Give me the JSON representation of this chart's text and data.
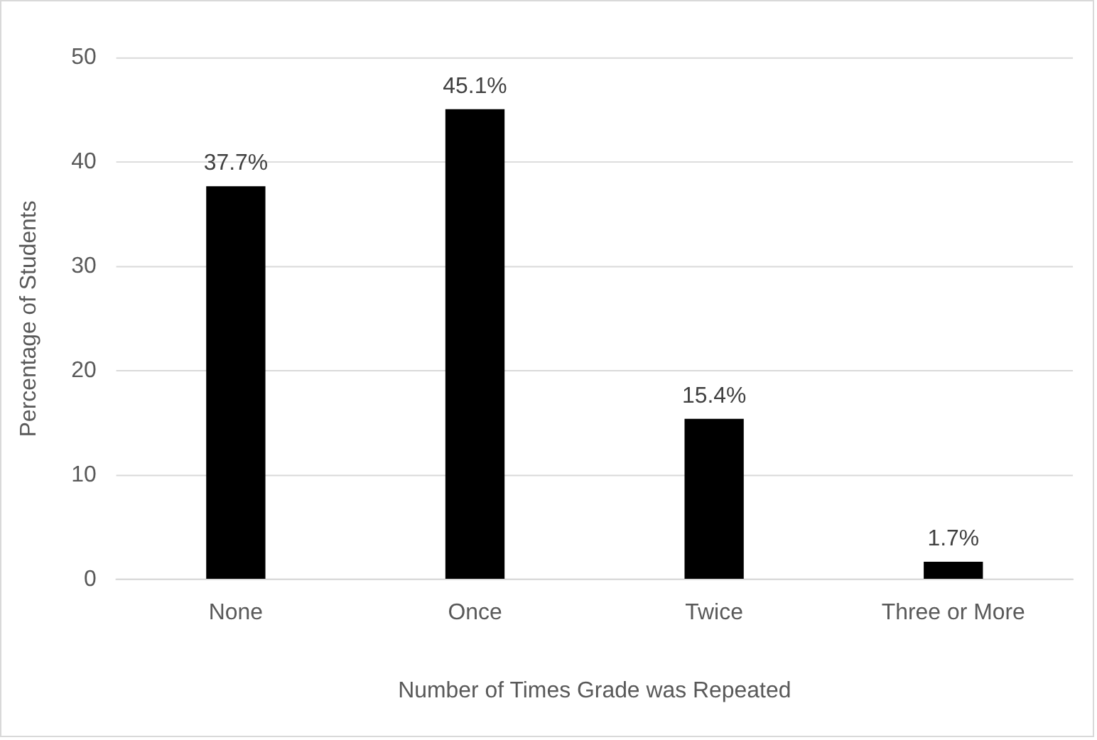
{
  "chart_data": {
    "type": "bar",
    "xlabel": "Number of Times Grade was Repeated",
    "ylabel": "Percentage of Students",
    "categories": [
      "None",
      "Once",
      "Twice",
      "Three or More"
    ],
    "values": [
      37.7,
      45.1,
      15.4,
      1.7
    ],
    "color": "#000000",
    "value_labels": [
      "37.7%",
      "45.1%",
      "15.4%",
      "1.7%"
    ],
    "ylim": [
      0,
      50
    ],
    "yticks": [
      0,
      10,
      20,
      30,
      40,
      50
    ],
    "grid": "y",
    "legend": false
  }
}
